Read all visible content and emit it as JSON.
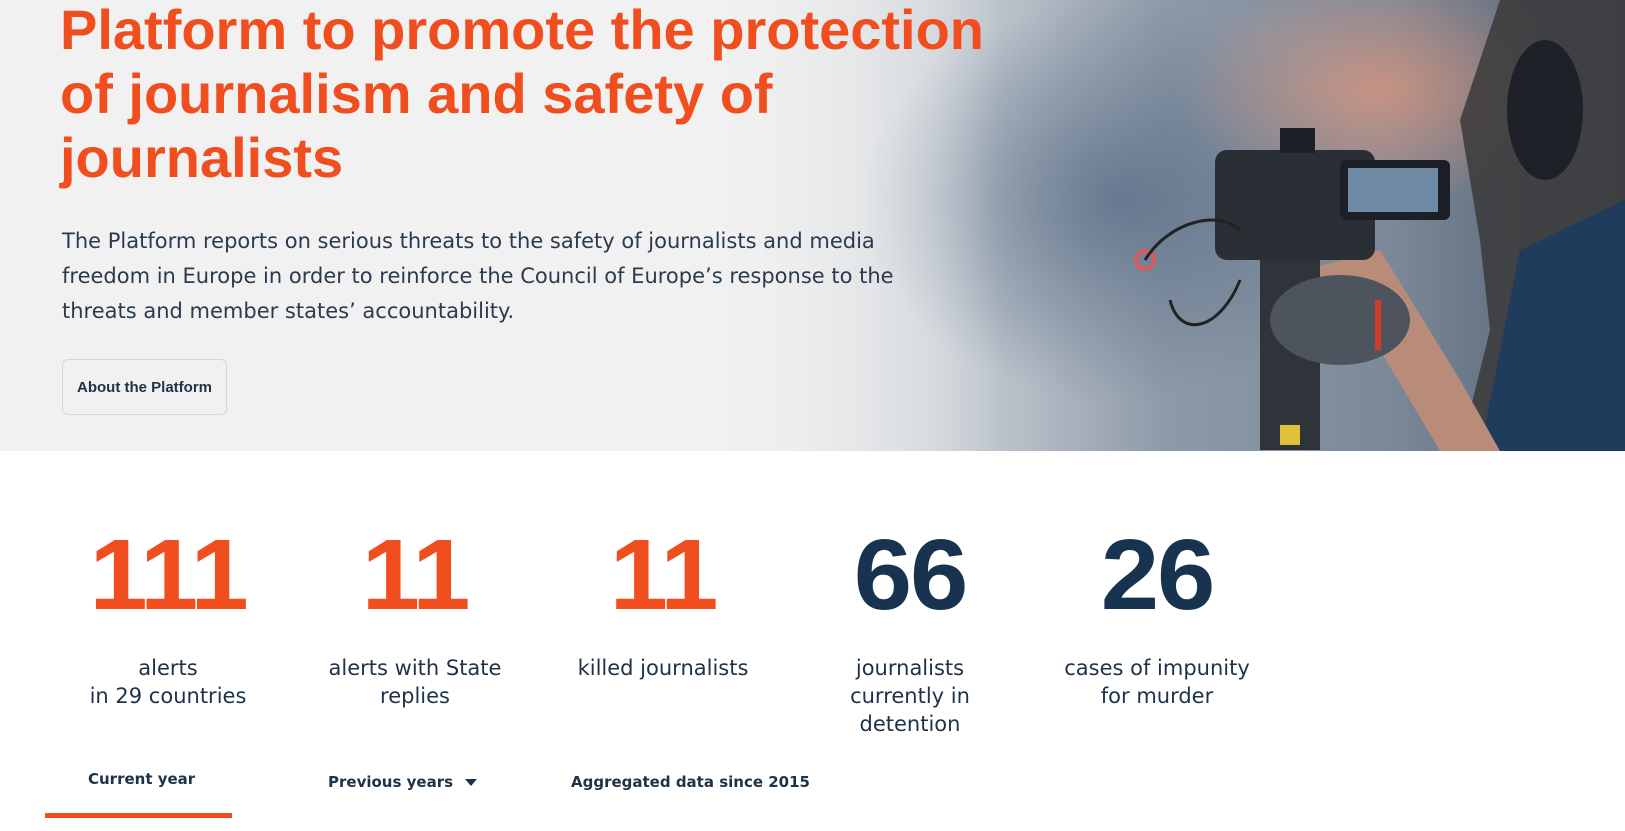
{
  "hero": {
    "title": "Platform to promote the protection of journalism and safety of journalists",
    "description": "The Platform reports on serious threats to the safety of journalists and media freedom in Europe in order to reinforce the Council of Europe’s response to the threats and member states’ accountability.",
    "about_button": "About the Platform"
  },
  "stats": [
    {
      "value": "111",
      "label": "alerts\nin 29 countries",
      "color": "#f04e1f"
    },
    {
      "value": "11",
      "label": "alerts with State\nreplies",
      "color": "#f04e1f"
    },
    {
      "value": "11",
      "label": "killed journalists",
      "color": "#f04e1f"
    },
    {
      "value": "66",
      "label": "journalists\ncurrently in\ndetention",
      "color": "#17334f"
    },
    {
      "value": "26",
      "label": "cases of impunity\nfor murder",
      "color": "#17334f"
    }
  ],
  "tabs": [
    {
      "label": "Current year",
      "active": true
    },
    {
      "label": "Previous years",
      "dropdown": true
    },
    {
      "label": "Aggregated data since 2015"
    }
  ],
  "colors": {
    "accent": "#f04e1f",
    "navy": "#17334f",
    "hero_bg": "#f1f1f1"
  }
}
